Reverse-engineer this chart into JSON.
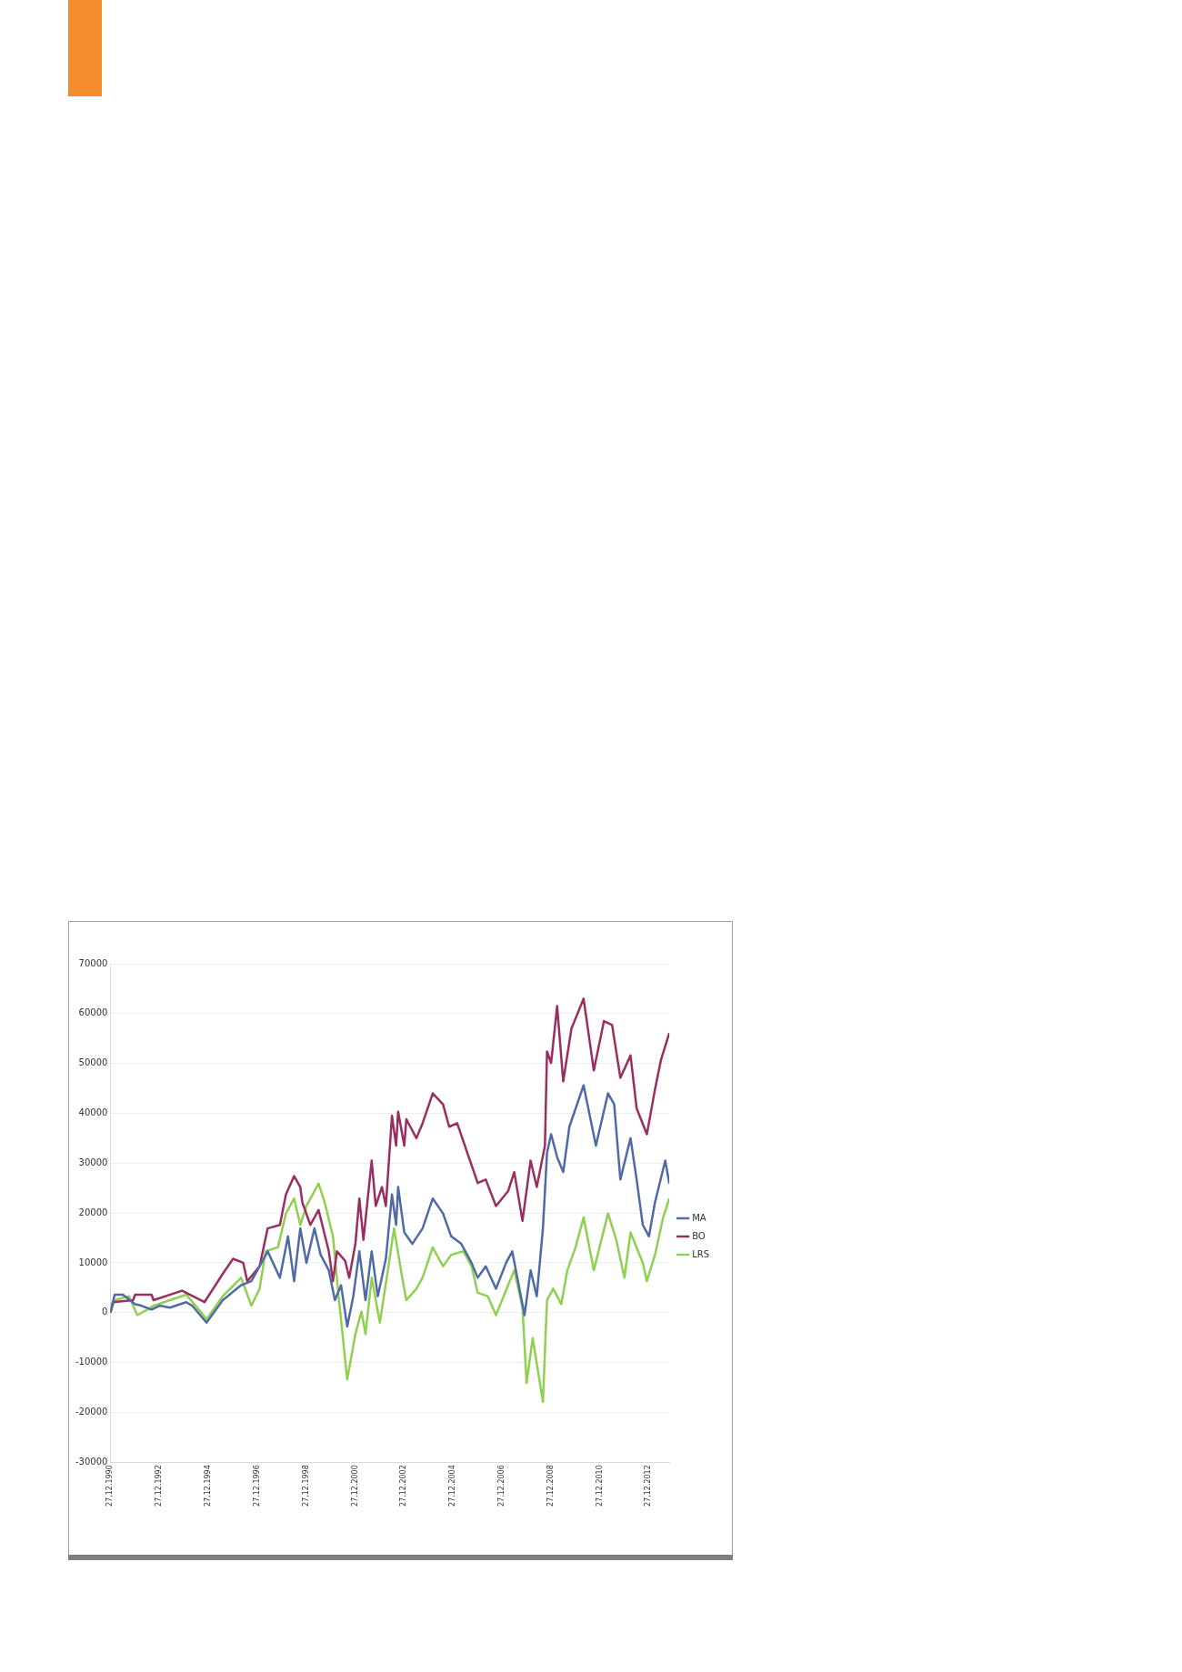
{
  "chart_data": {
    "type": "line",
    "legend": "right",
    "grid": "y",
    "marker": "none",
    "line_style": "solid",
    "xlim": [
      "1990-12-27",
      "2013-11"
    ],
    "xticks": [
      {
        "value": "1990-12-27",
        "label": "27.12.1990"
      },
      {
        "value": "1992-12-27",
        "label": "27.12.1992"
      },
      {
        "value": "1994-12-27",
        "label": "27.12.1994"
      },
      {
        "value": "1996-12-27",
        "label": "27.12.1996"
      },
      {
        "value": "1998-12-27",
        "label": "27.12.1998"
      },
      {
        "value": "2000-12-27",
        "label": "27.12.2000"
      },
      {
        "value": "2002-12-27",
        "label": "27.12.2002"
      },
      {
        "value": "2004-12-27",
        "label": "27.12.2004"
      },
      {
        "value": "2006-12-27",
        "label": "27.12.2006"
      },
      {
        "value": "2008-12-27",
        "label": "27.12.2008"
      },
      {
        "value": "2010-12-27",
        "label": "27.12.2010"
      },
      {
        "value": "2012-12-27",
        "label": "27.12.2012"
      }
    ],
    "ylim": [
      -30000,
      70000
    ],
    "yticks": [
      -30000,
      -20000,
      -10000,
      0,
      10000,
      20000,
      30000,
      40000,
      50000,
      60000,
      70000
    ],
    "series": [
      {
        "name": "MA",
        "color": "#4f6aa8",
        "x": [
          "1990-12-27",
          "1991-03",
          "1991-07",
          "1992-01",
          "1992-04",
          "1992-09",
          "1993-01",
          "1993-06",
          "1994-02",
          "1994-05",
          "1994-12",
          "1995-08",
          "1996-05",
          "1996-10",
          "1997-02",
          "1997-06",
          "1997-12",
          "1998-04",
          "1998-07",
          "1998-10",
          "1999-01",
          "1999-05",
          "1999-08",
          "1999-12",
          "2000-03",
          "2000-06",
          "2000-09",
          "2000-12",
          "2001-03",
          "2001-06",
          "2001-09",
          "2001-12",
          "2002-04",
          "2002-07",
          "2002-09",
          "2002-10",
          "2003-01",
          "2003-05",
          "2003-10",
          "2004-03",
          "2004-08",
          "2004-12",
          "2005-05",
          "2005-10",
          "2006-01",
          "2006-05",
          "2006-10",
          "2007-03",
          "2007-06",
          "2007-12",
          "2008-03",
          "2008-06",
          "2008-09",
          "2008-11",
          "2009-01",
          "2009-04",
          "2009-07",
          "2009-10",
          "2010-05",
          "2010-11",
          "2011-05",
          "2011-08",
          "2011-11",
          "2012-04",
          "2012-07",
          "2012-10",
          "2013-01",
          "2013-04",
          "2013-09",
          "2013-11"
        ],
        "values": [
          0,
          3600,
          3600,
          1700,
          1400,
          600,
          1400,
          1000,
          2100,
          1400,
          -2000,
          2500,
          5500,
          6300,
          9300,
          12300,
          7000,
          15300,
          6300,
          16900,
          10000,
          16900,
          11600,
          8500,
          2500,
          5500,
          -2800,
          3300,
          12300,
          2500,
          12300,
          3300,
          10800,
          23700,
          17600,
          25200,
          16100,
          13800,
          16900,
          22900,
          19900,
          15300,
          13800,
          10000,
          7000,
          9300,
          4800,
          10000,
          12300,
          -500,
          8500,
          3300,
          16900,
          32000,
          35800,
          31200,
          28200,
          37300,
          45600,
          33500,
          44000,
          41800,
          26700,
          35000,
          26700,
          17600,
          15300,
          22100,
          30500,
          25900
        ]
      },
      {
        "name": "BO",
        "color": "#9b2d61",
        "x": [
          "1990-12-27",
          "1991-02",
          "1991-12",
          "1992-01",
          "1992-09",
          "1992-10",
          "1993-12",
          "1994-11",
          "1995-08",
          "1996-01",
          "1996-06",
          "1996-08",
          "1997-02",
          "1997-06",
          "1997-12",
          "1998-03",
          "1998-07",
          "1998-10",
          "1998-11",
          "1999-03",
          "1999-07",
          "1999-12",
          "2000-02",
          "2000-04",
          "2000-08",
          "2000-10",
          "2001-01",
          "2001-03",
          "2001-05",
          "2001-09",
          "2001-11",
          "2002-02",
          "2002-04",
          "2002-07",
          "2002-09",
          "2002-10",
          "2003-01",
          "2003-02",
          "2003-07",
          "2003-10",
          "2004-03",
          "2004-08",
          "2004-11",
          "2005-03",
          "2005-08",
          "2006-01",
          "2006-05",
          "2006-10",
          "2007-04",
          "2007-07",
          "2007-11",
          "2008-03",
          "2008-06",
          "2008-10",
          "2008-11",
          "2009-01",
          "2009-04",
          "2009-07",
          "2009-11",
          "2010-05",
          "2010-10",
          "2011-03",
          "2011-07",
          "2011-11",
          "2012-04",
          "2012-07",
          "2012-12",
          "2013-04",
          "2013-07",
          "2013-11"
        ],
        "values": [
          0,
          2100,
          2500,
          3600,
          3600,
          2500,
          4400,
          2100,
          7800,
          10800,
          10000,
          6300,
          9300,
          16900,
          17600,
          23700,
          27400,
          25200,
          22100,
          17600,
          20600,
          12300,
          6300,
          12300,
          10400,
          7000,
          13800,
          22900,
          14600,
          30500,
          21400,
          25200,
          21400,
          39500,
          33500,
          40300,
          33500,
          38800,
          35000,
          38000,
          44000,
          41800,
          37300,
          38000,
          32000,
          26000,
          26700,
          21400,
          24400,
          28200,
          18400,
          30500,
          25200,
          33500,
          52400,
          50100,
          61500,
          46400,
          57000,
          63000,
          48600,
          58500,
          57700,
          47100,
          51600,
          41000,
          35800,
          44800,
          50800,
          56100
        ]
      },
      {
        "name": "LRS",
        "color": "#8fd14f",
        "x": [
          "1990-12-27",
          "1991-03",
          "1991-10",
          "1992-02",
          "1992-07",
          "1992-10",
          "1993-06",
          "1994-02",
          "1994-06",
          "1994-12",
          "1995-08",
          "1996-05",
          "1996-10",
          "1997-02",
          "1997-05",
          "1997-11",
          "1998-03",
          "1998-07",
          "1998-10",
          "1999-01",
          "1999-07",
          "1999-10",
          "2000-02",
          "2000-05",
          "2000-09",
          "2001-01",
          "2001-04",
          "2001-06",
          "2001-09",
          "2002-01",
          "2002-05",
          "2002-08",
          "2002-12",
          "2003-02",
          "2003-07",
          "2003-10",
          "2004-03",
          "2004-08",
          "2004-12",
          "2005-06",
          "2005-10",
          "2006-01",
          "2006-06",
          "2006-10",
          "2007-04",
          "2007-07",
          "2007-11",
          "2008-01",
          "2008-04",
          "2008-09",
          "2008-11",
          "2009-02",
          "2009-06",
          "2009-09",
          "2010-01",
          "2010-05",
          "2010-10",
          "2011-05",
          "2011-09",
          "2012-01",
          "2012-04",
          "2012-10",
          "2012-12",
          "2013-04",
          "2013-08",
          "2013-11"
        ],
        "values": [
          0,
          2500,
          3300,
          -500,
          600,
          1400,
          2500,
          3600,
          1700,
          -1300,
          3300,
          7000,
          1400,
          4800,
          12300,
          13100,
          19900,
          22900,
          17600,
          21400,
          25900,
          22100,
          15300,
          2500,
          -13400,
          -4300,
          200,
          -4300,
          7000,
          -2000,
          8500,
          16900,
          7000,
          2500,
          4800,
          7000,
          13100,
          9300,
          11600,
          12300,
          9300,
          4000,
          3300,
          -500,
          5500,
          8500,
          1000,
          -14100,
          -5100,
          -17900,
          2500,
          4800,
          1700,
          8500,
          13100,
          19100,
          8500,
          19900,
          14600,
          7000,
          16100,
          10000,
          6300,
          11600,
          19100,
          22900
        ]
      }
    ]
  }
}
